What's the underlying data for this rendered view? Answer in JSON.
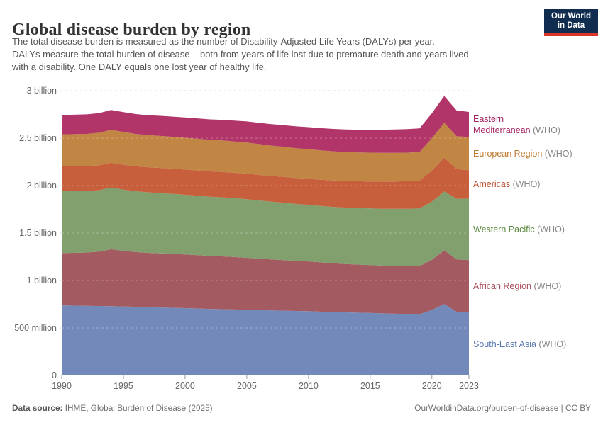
{
  "header": {
    "title": "Global disease burden by region",
    "subtitle": "The total disease burden is measured as the number of Disability-Adjusted Life Years (DALYs) per year.\nDALYs measure the total burden of disease – both from years of life lost due to premature death and years lived\nwith a disability. One DALY equals one lost year of healthy life.",
    "logo_text": "Our World\nin Data"
  },
  "footer": {
    "source_label": "Data source:",
    "source_text": " IHME, Global Burden of Disease (2025)",
    "right_text": "OurWorldinData.org/burden-of-disease | CC BY"
  },
  "colors": {
    "logo_navy": "#102d50",
    "logo_red": "#d9352b",
    "grid_gray": "#dcdcdc",
    "grid_over_area": "rgba(255,255,255,0.3)",
    "tick_mark": "#999999",
    "axis_text": "#666666",
    "who_suffix_gray": "#888888"
  },
  "chart_data": {
    "type": "area",
    "stacked": true,
    "title": "Global disease burden by region",
    "unit": "DALYs per year",
    "ylabel": "",
    "xlabel": "",
    "ylim_billions": [
      0,
      3
    ],
    "grid": true,
    "legend_position": "right",
    "x": [
      1990,
      1991,
      1992,
      1993,
      1994,
      1995,
      1996,
      1997,
      1998,
      1999,
      2000,
      2001,
      2002,
      2003,
      2004,
      2005,
      2006,
      2007,
      2008,
      2009,
      2010,
      2011,
      2012,
      2013,
      2014,
      2015,
      2016,
      2017,
      2018,
      2019,
      2020,
      2021,
      2022,
      2023
    ],
    "x_ticks": [
      1990,
      1995,
      2000,
      2005,
      2010,
      2015,
      2020,
      2023
    ],
    "y_ticks": [
      {
        "v": 3,
        "label": "3 billion"
      },
      {
        "v": 2.5,
        "label": "2.5 billion"
      },
      {
        "v": 2,
        "label": "2 billion"
      },
      {
        "v": 1.5,
        "label": "1.5 billion"
      },
      {
        "v": 1,
        "label": "1 billion"
      },
      {
        "v": 0.5,
        "label": "500 million"
      },
      {
        "v": 0,
        "label": "0"
      }
    ],
    "series": [
      {
        "name": "South-East Asia",
        "suffix": "(WHO)",
        "color": "#7389b9",
        "label_color": "#5876ae",
        "values_billions": [
          0.738,
          0.735,
          0.733,
          0.731,
          0.729,
          0.727,
          0.723,
          0.719,
          0.716,
          0.713,
          0.709,
          0.705,
          0.701,
          0.698,
          0.695,
          0.692,
          0.688,
          0.685,
          0.682,
          0.679,
          0.677,
          0.672,
          0.668,
          0.664,
          0.661,
          0.658,
          0.654,
          0.65,
          0.647,
          0.645,
          0.69,
          0.752,
          0.672,
          0.663
        ]
      },
      {
        "name": "African Region",
        "suffix": "(WHO)",
        "color": "#a35a60",
        "label_color": "#a84b58",
        "values_billions": [
          0.551,
          0.556,
          0.562,
          0.572,
          0.6,
          0.585,
          0.576,
          0.572,
          0.57,
          0.568,
          0.565,
          0.562,
          0.559,
          0.556,
          0.552,
          0.547,
          0.542,
          0.537,
          0.532,
          0.527,
          0.524,
          0.519,
          0.514,
          0.51,
          0.507,
          0.504,
          0.503,
          0.503,
          0.504,
          0.506,
          0.528,
          0.566,
          0.55,
          0.552
        ]
      },
      {
        "name": "Western Pacific",
        "suffix": "(WHO)",
        "color": "#81a06e",
        "label_color": "#5f8a41",
        "values_billions": [
          0.655,
          0.652,
          0.649,
          0.648,
          0.65,
          0.645,
          0.641,
          0.638,
          0.635,
          0.632,
          0.629,
          0.626,
          0.623,
          0.622,
          0.62,
          0.618,
          0.613,
          0.608,
          0.605,
          0.6,
          0.596,
          0.594,
          0.593,
          0.594,
          0.595,
          0.597,
          0.599,
          0.602,
          0.605,
          0.608,
          0.612,
          0.62,
          0.638,
          0.648
        ]
      },
      {
        "name": "Americas",
        "suffix": "(WHO)",
        "color": "#c75f3c",
        "label_color": "#c05134",
        "values_billions": [
          0.26,
          0.261,
          0.261,
          0.262,
          0.262,
          0.263,
          0.263,
          0.264,
          0.265,
          0.265,
          0.266,
          0.267,
          0.267,
          0.268,
          0.268,
          0.269,
          0.27,
          0.271,
          0.272,
          0.274,
          0.275,
          0.277,
          0.279,
          0.281,
          0.282,
          0.284,
          0.286,
          0.288,
          0.29,
          0.292,
          0.33,
          0.357,
          0.315,
          0.298
        ]
      },
      {
        "name": "European Region",
        "suffix": "(WHO)",
        "color": "#c18643",
        "label_color": "#bf7b2f",
        "values_billions": [
          0.336,
          0.338,
          0.34,
          0.343,
          0.347,
          0.345,
          0.341,
          0.338,
          0.337,
          0.336,
          0.335,
          0.333,
          0.332,
          0.331,
          0.329,
          0.328,
          0.324,
          0.32,
          0.317,
          0.314,
          0.312,
          0.309,
          0.307,
          0.305,
          0.304,
          0.304,
          0.303,
          0.302,
          0.301,
          0.301,
          0.34,
          0.366,
          0.345,
          0.35
        ]
      },
      {
        "name": "Eastern\nMediterranean",
        "suffix": "(WHO)",
        "color": "#b13568",
        "label_color": "#a62565",
        "values_billions": [
          0.203,
          0.205,
          0.206,
          0.207,
          0.208,
          0.209,
          0.21,
          0.211,
          0.212,
          0.213,
          0.214,
          0.215,
          0.216,
          0.218,
          0.22,
          0.222,
          0.224,
          0.226,
          0.228,
          0.23,
          0.232,
          0.234,
          0.236,
          0.238,
          0.24,
          0.242,
          0.244,
          0.246,
          0.248,
          0.25,
          0.262,
          0.283,
          0.272,
          0.265
        ]
      }
    ]
  }
}
